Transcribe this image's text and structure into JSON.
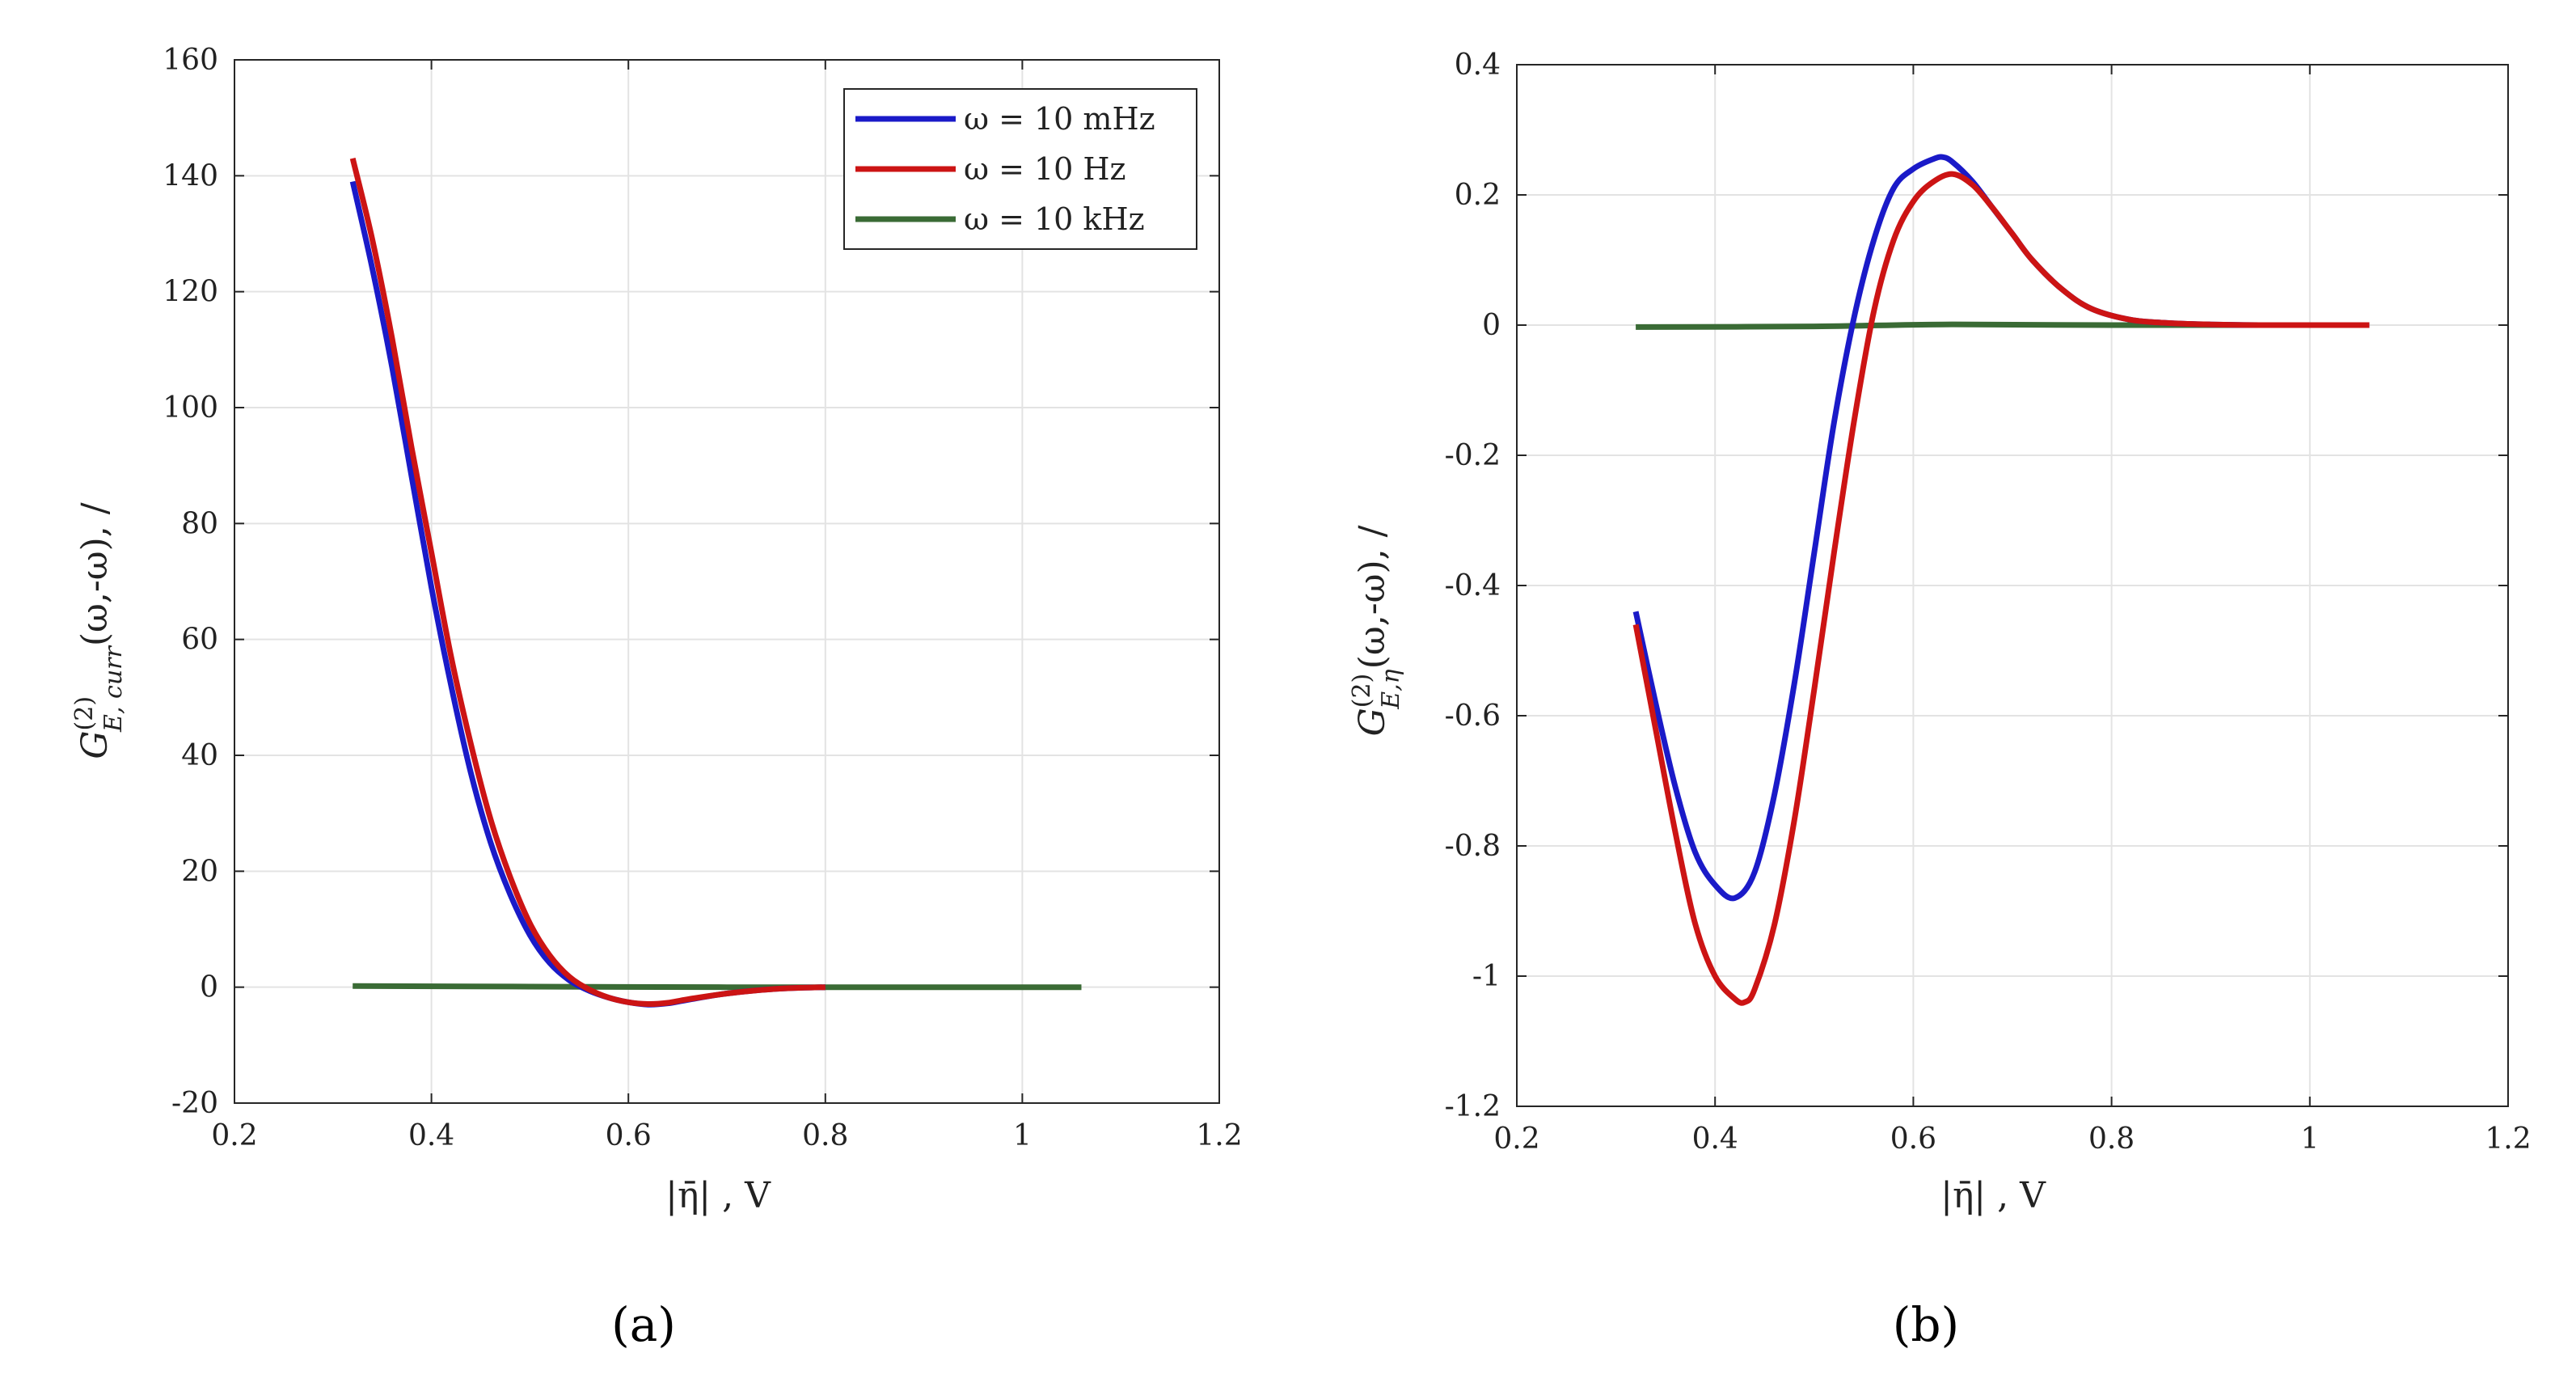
{
  "chart_data": [
    {
      "type": "line",
      "panel_label": "a",
      "xlabel": "|η̄| , V",
      "ylabel": "G(2)E, curr(ω,-ω), /",
      "ylabel_main": "G",
      "ylabel_sup": "(2)",
      "ylabel_sub": "E, curr",
      "ylabel_rest": "(ω,-ω), /",
      "xlim": [
        0.2,
        1.2
      ],
      "ylim": [
        -20,
        160
      ],
      "xticks": [
        0.2,
        0.4,
        0.6,
        0.8,
        1,
        1.2
      ],
      "xtick_labels": [
        "0.2",
        "0.4",
        "0.6",
        "0.8",
        "1",
        "1.2"
      ],
      "yticks": [
        -20,
        0,
        20,
        40,
        60,
        80,
        100,
        120,
        140,
        160
      ],
      "ytick_labels": [
        "-20",
        "0",
        "20",
        "40",
        "60",
        "80",
        "100",
        "120",
        "140",
        "160"
      ],
      "grid": true,
      "legend_position": "top-right",
      "series": [
        {
          "name": "ω = 10 mHz",
          "color": "#1a1ac8",
          "x": [
            0.32,
            0.34,
            0.36,
            0.38,
            0.4,
            0.42,
            0.44,
            0.46,
            0.48,
            0.5,
            0.52,
            0.54,
            0.56,
            0.58,
            0.6,
            0.62,
            0.64,
            0.66,
            0.7,
            0.75,
            0.8
          ],
          "y": [
            139,
            124,
            107,
            88,
            69,
            52,
            37,
            25,
            16,
            9,
            4.2,
            1.2,
            -0.6,
            -1.8,
            -2.6,
            -3.0,
            -2.8,
            -2.2,
            -1.1,
            -0.3,
            0
          ]
        },
        {
          "name": "ω = 10 Hz",
          "color": "#cc1414",
          "x": [
            0.32,
            0.34,
            0.36,
            0.38,
            0.4,
            0.42,
            0.44,
            0.46,
            0.48,
            0.5,
            0.52,
            0.54,
            0.56,
            0.58,
            0.6,
            0.62,
            0.64,
            0.66,
            0.7,
            0.75,
            0.8
          ],
          "y": [
            143,
            129,
            112,
            93,
            75,
            57,
            42,
            29,
            19,
            11,
            5.5,
            1.8,
            -0.4,
            -1.8,
            -2.6,
            -2.9,
            -2.7,
            -2.1,
            -1.1,
            -0.3,
            0
          ]
        },
        {
          "name": "ω = 10 kHz",
          "color": "#3a6b35",
          "x": [
            0.32,
            0.5,
            0.7,
            0.9,
            1.06
          ],
          "y": [
            0.2,
            0.1,
            0,
            0,
            0
          ]
        }
      ]
    },
    {
      "type": "line",
      "panel_label": "b",
      "xlabel": "|η̄| , V",
      "ylabel": "G(2)E,η(ω,-ω), /",
      "ylabel_main": "G",
      "ylabel_sup": "(2)",
      "ylabel_sub": "E,η",
      "ylabel_rest": "(ω,-ω), /",
      "xlim": [
        0.2,
        1.2
      ],
      "ylim": [
        -1.2,
        0.4
      ],
      "xticks": [
        0.2,
        0.4,
        0.6,
        0.8,
        1,
        1.2
      ],
      "xtick_labels": [
        "0.2",
        "0.4",
        "0.6",
        "0.8",
        "1",
        "1.2"
      ],
      "yticks": [
        -1.2,
        -1,
        -0.8,
        -0.6,
        -0.4,
        -0.2,
        0,
        0.2,
        0.4
      ],
      "ytick_labels": [
        "-1.2",
        "-1",
        "-0.8",
        "-0.6",
        "-0.4",
        "-0.2",
        "0",
        "0.2",
        "0.4"
      ],
      "grid": true,
      "legend_position": "none",
      "series": [
        {
          "name": "ω = 10 mHz",
          "color": "#1a1ac8",
          "x": [
            0.32,
            0.34,
            0.36,
            0.38,
            0.4,
            0.42,
            0.44,
            0.46,
            0.48,
            0.5,
            0.52,
            0.54,
            0.56,
            0.58,
            0.6,
            0.62,
            0.63,
            0.64,
            0.66,
            0.68,
            0.7,
            0.72,
            0.75,
            0.78,
            0.82,
            0.86,
            0.9,
            0.95,
            1.0,
            1.06
          ],
          "y": [
            -0.44,
            -0.58,
            -0.71,
            -0.81,
            -0.86,
            -0.88,
            -0.84,
            -0.72,
            -0.55,
            -0.35,
            -0.15,
            0.01,
            0.13,
            0.21,
            0.24,
            0.255,
            0.258,
            0.25,
            0.22,
            0.18,
            0.14,
            0.1,
            0.055,
            0.025,
            0.008,
            0.003,
            0.001,
            0,
            0,
            0
          ]
        },
        {
          "name": "ω = 10 Hz",
          "color": "#cc1414",
          "x": [
            0.32,
            0.34,
            0.36,
            0.38,
            0.4,
            0.42,
            0.43,
            0.44,
            0.46,
            0.48,
            0.5,
            0.52,
            0.54,
            0.56,
            0.58,
            0.6,
            0.62,
            0.64,
            0.66,
            0.68,
            0.7,
            0.72,
            0.75,
            0.78,
            0.82,
            0.86,
            0.9,
            0.95,
            1.0,
            1.06
          ],
          "y": [
            -0.46,
            -0.62,
            -0.78,
            -0.92,
            -1.0,
            -1.035,
            -1.04,
            -1.02,
            -0.92,
            -0.76,
            -0.56,
            -0.35,
            -0.15,
            0.02,
            0.13,
            0.19,
            0.22,
            0.232,
            0.215,
            0.18,
            0.14,
            0.1,
            0.055,
            0.025,
            0.008,
            0.003,
            0.001,
            0,
            0,
            0
          ]
        },
        {
          "name": "ω = 10 kHz",
          "color": "#3a6b35",
          "x": [
            0.32,
            0.5,
            0.63,
            0.8,
            1.06
          ],
          "y": [
            -0.003,
            -0.002,
            0.001,
            0,
            0
          ]
        }
      ]
    }
  ],
  "captions": [
    "(a)",
    "(b)"
  ]
}
